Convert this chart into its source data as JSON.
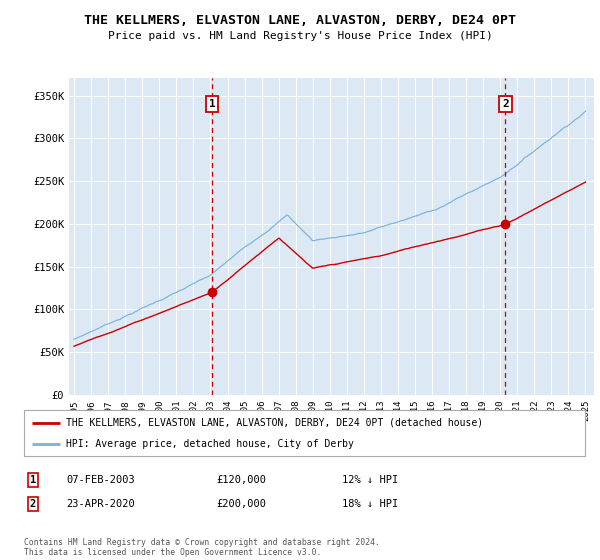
{
  "title": "THE KELLMERS, ELVASTON LANE, ALVASTON, DERBY, DE24 0PT",
  "subtitle": "Price paid vs. HM Land Registry's House Price Index (HPI)",
  "background_color": "#ffffff",
  "plot_bg_color": "#dce9f5",
  "hpi_color": "#7ab3d9",
  "price_color": "#cc0000",
  "dashed_line_color": "#cc0000",
  "ylim": [
    0,
    370000
  ],
  "yticks": [
    0,
    50000,
    100000,
    150000,
    200000,
    250000,
    300000,
    350000
  ],
  "ytick_labels": [
    "£0",
    "£50K",
    "£100K",
    "£150K",
    "£200K",
    "£250K",
    "£300K",
    "£350K"
  ],
  "xstart_year": 1995,
  "xend_year": 2025,
  "legend_line1": "THE KELLMERS, ELVASTON LANE, ALVASTON, DERBY, DE24 0PT (detached house)",
  "legend_line2": "HPI: Average price, detached house, City of Derby",
  "marker1_year": 2003.1,
  "marker1_price": 120000,
  "marker1_label": "1",
  "marker1_text": "07-FEB-2003",
  "marker1_amount": "£120,000",
  "marker1_hpi": "12% ↓ HPI",
  "marker2_year": 2020.3,
  "marker2_price": 200000,
  "marker2_label": "2",
  "marker2_text": "23-APR-2020",
  "marker2_amount": "£200,000",
  "marker2_hpi": "18% ↓ HPI",
  "footer": "Contains HM Land Registry data © Crown copyright and database right 2024.\nThis data is licensed under the Open Government Licence v3.0."
}
